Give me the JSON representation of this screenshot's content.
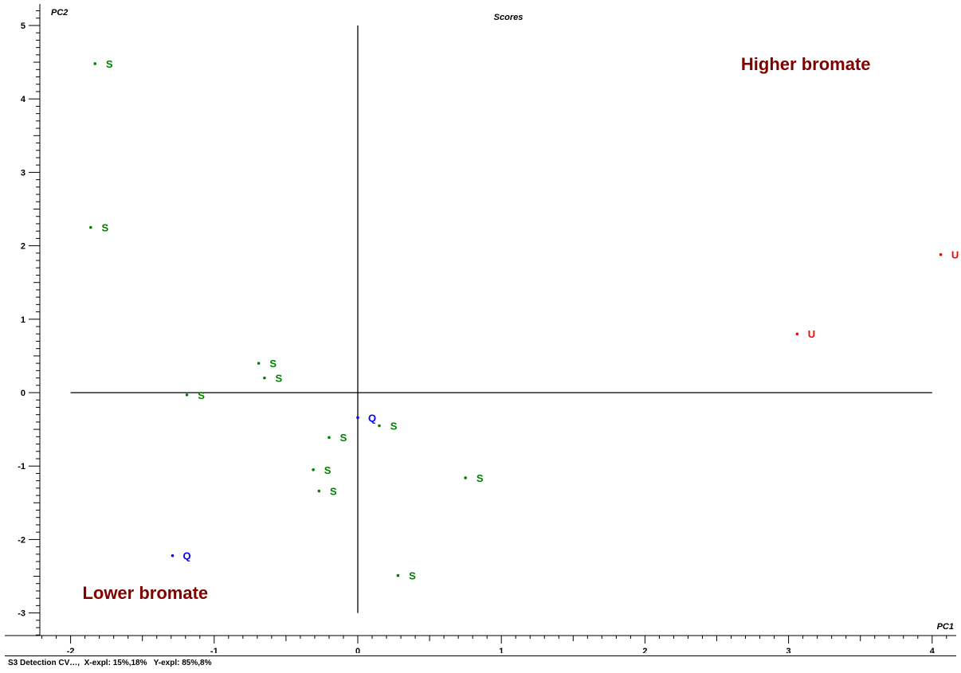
{
  "chart_data": {
    "type": "scatter",
    "title": "Scores",
    "xlabel": "PC1",
    "ylabel": "PC2",
    "xlim": [
      -2.2,
      4.15
    ],
    "ylim": [
      -3.3,
      5.2
    ],
    "x_ticks": [
      -2,
      -1,
      0,
      1,
      2,
      3,
      4
    ],
    "y_ticks": [
      -3,
      -2,
      -1,
      0,
      1,
      2,
      3,
      4,
      5
    ],
    "grid": false,
    "reference_lines": {
      "x": 0,
      "y": 0
    },
    "series": [
      {
        "label": "S",
        "color": "#008000",
        "points": [
          {
            "x": -1.83,
            "y": 4.48
          },
          {
            "x": -1.86,
            "y": 2.25
          },
          {
            "x": -0.69,
            "y": 0.4
          },
          {
            "x": -0.65,
            "y": 0.2
          },
          {
            "x": -1.19,
            "y": -0.03
          },
          {
            "x": 0.15,
            "y": -0.45
          },
          {
            "x": -0.2,
            "y": -0.61
          },
          {
            "x": -0.31,
            "y": -1.05
          },
          {
            "x": -0.27,
            "y": -1.34
          },
          {
            "x": 0.75,
            "y": -1.16
          },
          {
            "x": 0.28,
            "y": -2.49
          }
        ]
      },
      {
        "label": "Q",
        "color": "#0000ff",
        "points": [
          {
            "x": 0.0,
            "y": -0.34
          },
          {
            "x": -1.29,
            "y": -2.22
          }
        ]
      },
      {
        "label": "U",
        "color": "#ff0000",
        "points": [
          {
            "x": 4.06,
            "y": 1.88
          },
          {
            "x": 3.06,
            "y": 0.8
          }
        ]
      }
    ],
    "annotations": [
      {
        "text": "Higher bromate",
        "x": 3.12,
        "y": 4.48,
        "color": "#800000"
      },
      {
        "text": "Lower bromate",
        "x": -1.48,
        "y": -2.72,
        "color": "#800000"
      }
    ]
  },
  "footer": {
    "text": "S3 Detection CV…,  X-expl: 15%,18%   Y-expl: 85%,8%"
  }
}
